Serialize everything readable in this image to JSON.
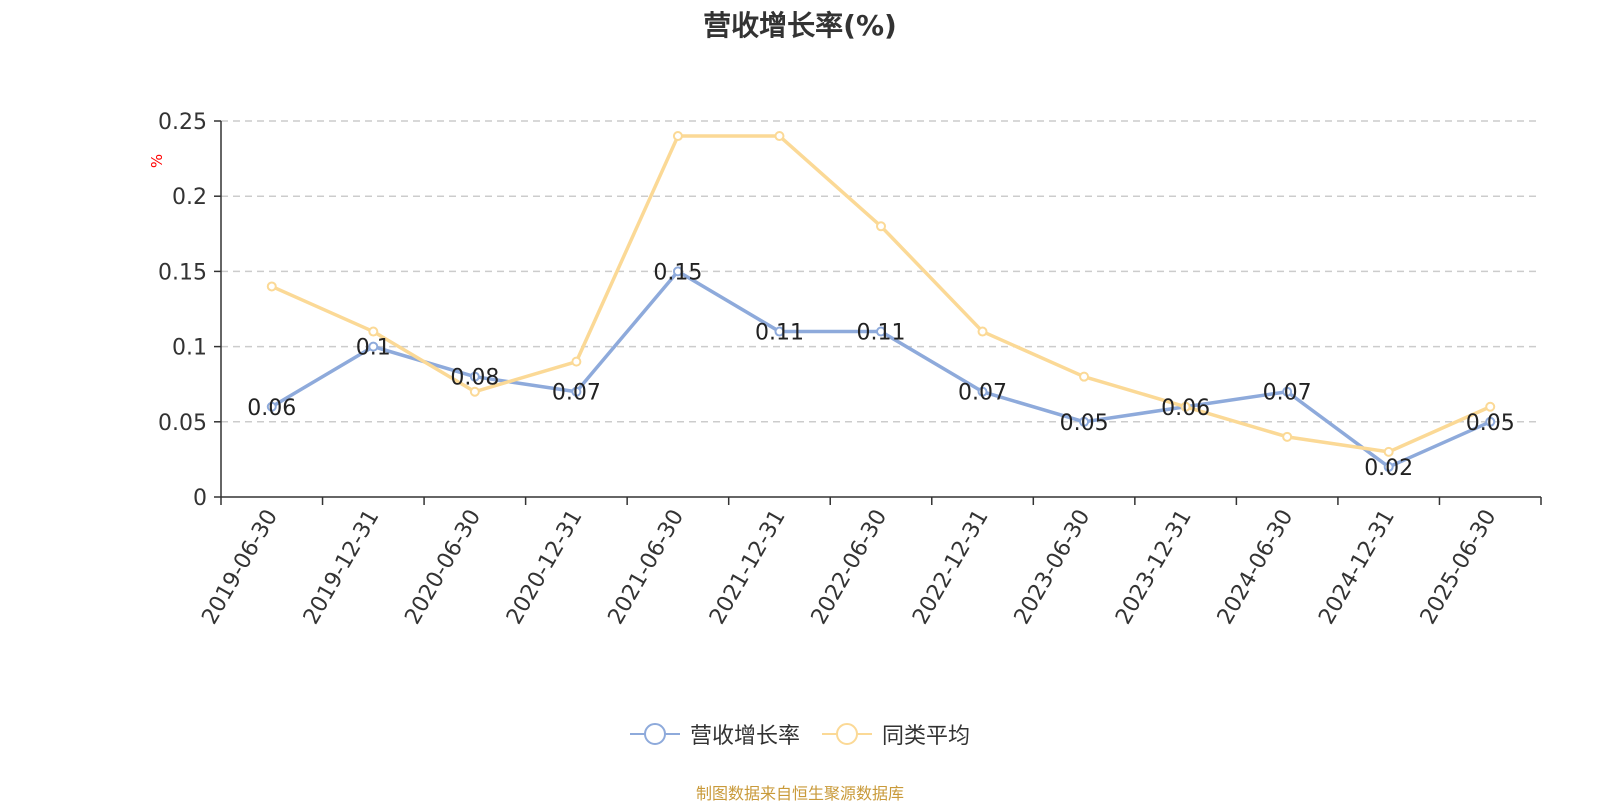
{
  "title": "营收增长率(%)",
  "source": "制图数据来自恒生聚源数据库",
  "colors": {
    "series_1": "#8eaadb",
    "series_2": "#fbd996",
    "source_text": "#c99a3a",
    "y_unit": "#ff0000",
    "grid": "#cccccc",
    "axis": "#333333"
  },
  "chart_data": {
    "type": "line",
    "title": "营收增长率(%)",
    "ylabel": "%",
    "xlabel": "",
    "categories": [
      "2019-06-30",
      "2019-12-31",
      "2020-06-30",
      "2020-12-31",
      "2021-06-30",
      "2021-12-31",
      "2022-06-30",
      "2022-12-31",
      "2023-06-30",
      "2023-12-31",
      "2024-06-30",
      "2024-12-31",
      "2025-06-30"
    ],
    "ylim": [
      0,
      0.25
    ],
    "yticks": [
      0,
      0.05,
      0.1,
      0.15,
      0.2,
      0.25
    ],
    "ytick_labels": [
      "0",
      "0.05",
      "0.1",
      "0.15",
      "0.2",
      "0.25"
    ],
    "grid": true,
    "legend_position": "bottom",
    "series": [
      {
        "name": "营收增长率",
        "values": [
          0.06,
          0.1,
          0.08,
          0.07,
          0.15,
          0.11,
          0.11,
          0.07,
          0.05,
          0.06,
          0.07,
          0.02,
          0.05
        ],
        "data_labels": [
          "0.06",
          "0.1",
          "0.08",
          "0.07",
          "0.15",
          "0.11",
          "0.11",
          "0.07",
          "0.05",
          "0.06",
          "0.07",
          "0.02",
          "0.05"
        ]
      },
      {
        "name": "同类平均",
        "values": [
          0.14,
          0.11,
          0.07,
          0.09,
          0.24,
          0.24,
          0.18,
          0.11,
          0.08,
          0.06,
          0.04,
          0.03,
          0.06
        ]
      }
    ]
  }
}
